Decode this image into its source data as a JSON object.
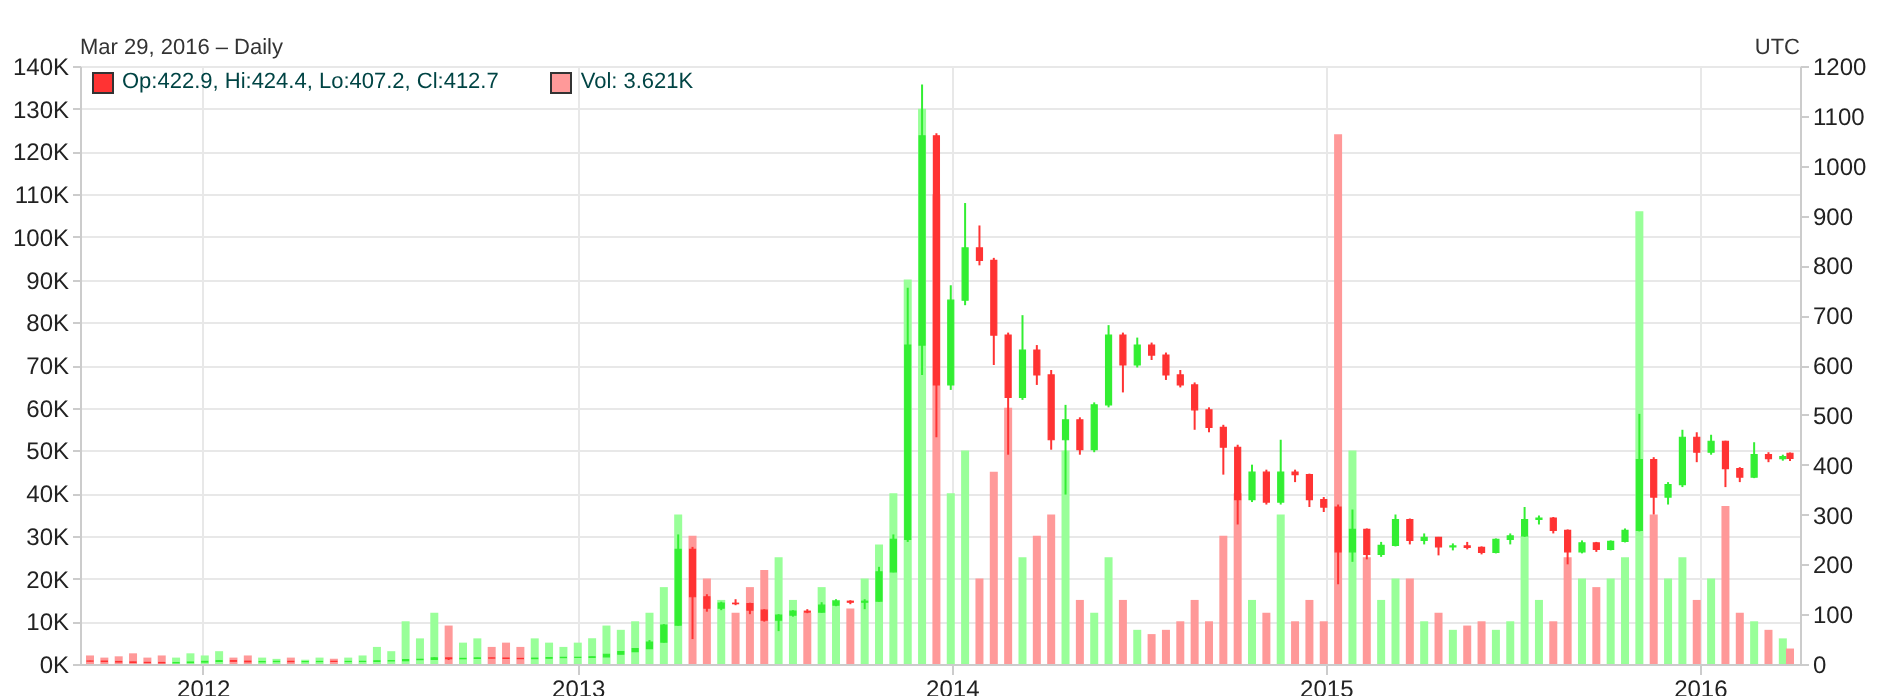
{
  "chart_data": {
    "type": "candlestick",
    "subtitle": "Mar 29, 2016 – Daily",
    "annotations": [
      "Op:422.9, Hi:424.4, Lo:407.2, Cl:412.7",
      "Vol: 3.621K",
      "UTC"
    ],
    "x": [
      "2011-09-13",
      "2011-09-27",
      "2011-10-11",
      "2011-10-25",
      "2011-11-08",
      "2011-11-22",
      "2011-12-06",
      "2011-12-20",
      "2012-01-03",
      "2012-01-17",
      "2012-01-31",
      "2012-02-14",
      "2012-02-28",
      "2012-03-13",
      "2012-03-27",
      "2012-04-10",
      "2012-04-24",
      "2012-05-08",
      "2012-05-22",
      "2012-06-05",
      "2012-06-19",
      "2012-07-03",
      "2012-07-17",
      "2012-07-31",
      "2012-08-14",
      "2012-08-28",
      "2012-09-11",
      "2012-09-25",
      "2012-10-09",
      "2012-10-23",
      "2012-11-06",
      "2012-11-20",
      "2012-12-04",
      "2012-12-18",
      "2013-01-01",
      "2013-01-15",
      "2013-01-29",
      "2013-02-12",
      "2013-02-26",
      "2013-03-12",
      "2013-03-26",
      "2013-04-09",
      "2013-04-23",
      "2013-05-07",
      "2013-05-21",
      "2013-06-04",
      "2013-06-18",
      "2013-07-02",
      "2013-07-16",
      "2013-07-30",
      "2013-08-13",
      "2013-08-27",
      "2013-09-10",
      "2013-09-24",
      "2013-10-08",
      "2013-10-22",
      "2013-11-05",
      "2013-11-19",
      "2013-12-03",
      "2013-12-17",
      "2013-12-31",
      "2014-01-14",
      "2014-01-28",
      "2014-02-11",
      "2014-02-25",
      "2014-03-11",
      "2014-03-25",
      "2014-04-08",
      "2014-04-22",
      "2014-05-06",
      "2014-05-20",
      "2014-06-03",
      "2014-06-17",
      "2014-07-01",
      "2014-07-15",
      "2014-07-29",
      "2014-08-12",
      "2014-08-26",
      "2014-09-09",
      "2014-09-23",
      "2014-10-07",
      "2014-10-21",
      "2014-11-04",
      "2014-11-18",
      "2014-12-02",
      "2014-12-16",
      "2014-12-30",
      "2015-01-13",
      "2015-01-27",
      "2015-02-10",
      "2015-02-24",
      "2015-03-10",
      "2015-03-24",
      "2015-04-07",
      "2015-04-21",
      "2015-05-05",
      "2015-05-19",
      "2015-06-02",
      "2015-06-16",
      "2015-06-30",
      "2015-07-14",
      "2015-07-28",
      "2015-08-11",
      "2015-08-25",
      "2015-09-08",
      "2015-09-22",
      "2015-10-06",
      "2015-10-20",
      "2015-11-03",
      "2015-11-17",
      "2015-12-01",
      "2015-12-15",
      "2015-12-29",
      "2016-01-12",
      "2016-01-26",
      "2016-02-09",
      "2016-02-23",
      "2016-03-08",
      "2016-03-22",
      "2016-03-29"
    ],
    "xlim": [
      "2011-09-13",
      "2016-03-29"
    ],
    "xticks": [
      "2012",
      "2013",
      "2014",
      "2015",
      "2016"
    ],
    "ylim": [
      0,
      140000
    ],
    "yticks": [
      {
        "value": 0,
        "label": "0K"
      },
      {
        "value": 10000,
        "label": "10K"
      },
      {
        "value": 20000,
        "label": "20K"
      },
      {
        "value": 30000,
        "label": "30K"
      },
      {
        "value": 40000,
        "label": "40K"
      },
      {
        "value": 50000,
        "label": "50K"
      },
      {
        "value": 60000,
        "label": "60K"
      },
      {
        "value": 70000,
        "label": "70K"
      },
      {
        "value": 80000,
        "label": "80K"
      },
      {
        "value": 90000,
        "label": "90K"
      },
      {
        "value": 100000,
        "label": "100K"
      },
      {
        "value": 110000,
        "label": "110K"
      },
      {
        "value": 120000,
        "label": "120K"
      },
      {
        "value": 130000,
        "label": "130K"
      },
      {
        "value": 140000,
        "label": "140K"
      }
    ],
    "y2lim": [
      0,
      1200
    ],
    "y2ticks": [
      0,
      100,
      200,
      300,
      400,
      500,
      600,
      700,
      800,
      900,
      1000,
      1100,
      1200
    ],
    "grid": true,
    "series": [
      {
        "type": "bar",
        "axis": "y",
        "values": [
          2000,
          1500,
          1800,
          2500,
          1500,
          2000,
          1500,
          2500,
          2000,
          3000,
          1500,
          2000,
          1500,
          1200,
          1500,
          1000,
          1500,
          1200,
          1500,
          2000,
          4000,
          3000,
          10000,
          6000,
          12000,
          9000,
          5000,
          6000,
          4000,
          5000,
          4000,
          6000,
          5000,
          4000,
          5000,
          6000,
          9000,
          8000,
          10000,
          12000,
          18000,
          35000,
          30000,
          20000,
          15000,
          12000,
          18000,
          22000,
          25000,
          15000,
          12000,
          18000,
          15000,
          13000,
          20000,
          28000,
          40000,
          90000,
          130000,
          110000,
          40000,
          50000,
          20000,
          45000,
          60000,
          25000,
          30000,
          35000,
          50000,
          15000,
          12000,
          25000,
          15000,
          8000,
          7000,
          8000,
          10000,
          15000,
          10000,
          30000,
          40000,
          15000,
          12000,
          35000,
          10000,
          15000,
          10000,
          124000,
          50000,
          25000,
          15000,
          20000,
          20000,
          10000,
          12000,
          8000,
          9000,
          10000,
          8000,
          10000,
          30000,
          15000,
          10000,
          25000,
          20000,
          18000,
          20000,
          25000,
          106000,
          35000,
          20000,
          25000,
          15000,
          20000,
          37000,
          12000,
          10000,
          8000,
          6000,
          3621
        ],
        "colors": [
          "#ff9999",
          "#ff9999",
          "#ff9999",
          "#ff9999",
          "#ff9999",
          "#ff9999",
          "#99ff99",
          "#99ff99",
          "#99ff99",
          "#99ff99",
          "#ff9999",
          "#ff9999",
          "#99ff99",
          "#99ff99",
          "#ff9999",
          "#99ff99",
          "#99ff99",
          "#ff9999",
          "#99ff99",
          "#99ff99",
          "#99ff99",
          "#99ff99",
          "#99ff99",
          "#99ff99",
          "#99ff99",
          "#ff9999",
          "#99ff99",
          "#99ff99",
          "#ff9999",
          "#ff9999",
          "#ff9999",
          "#99ff99",
          "#99ff99",
          "#99ff99",
          "#99ff99",
          "#99ff99",
          "#99ff99",
          "#99ff99",
          "#99ff99",
          "#99ff99",
          "#99ff99",
          "#99ff99",
          "#ff9999",
          "#ff9999",
          "#99ff99",
          "#ff9999",
          "#ff9999",
          "#ff9999",
          "#99ff99",
          "#99ff99",
          "#ff9999",
          "#99ff99",
          "#99ff99",
          "#ff9999",
          "#99ff99",
          "#99ff99",
          "#99ff99",
          "#99ff99",
          "#99ff99",
          "#ff9999",
          "#99ff99",
          "#99ff99",
          "#ff9999",
          "#ff9999",
          "#ff9999",
          "#99ff99",
          "#ff9999",
          "#ff9999",
          "#99ff99",
          "#ff9999",
          "#99ff99",
          "#99ff99",
          "#ff9999",
          "#99ff99",
          "#ff9999",
          "#ff9999",
          "#ff9999",
          "#ff9999",
          "#ff9999",
          "#ff9999",
          "#ff9999",
          "#99ff99",
          "#ff9999",
          "#99ff99",
          "#ff9999",
          "#ff9999",
          "#ff9999",
          "#ff9999",
          "#99ff99",
          "#ff9999",
          "#99ff99",
          "#99ff99",
          "#ff9999",
          "#99ff99",
          "#ff9999",
          "#99ff99",
          "#ff9999",
          "#ff9999",
          "#99ff99",
          "#99ff99",
          "#99ff99",
          "#99ff99",
          "#ff9999",
          "#ff9999",
          "#99ff99",
          "#ff9999",
          "#99ff99",
          "#99ff99",
          "#99ff99",
          "#ff9999",
          "#99ff99",
          "#99ff99",
          "#ff9999",
          "#99ff99",
          "#ff9999",
          "#ff9999",
          "#99ff99",
          "#ff9999",
          "#99ff99",
          "#ff9999"
        ]
      },
      {
        "axis": "y2",
        "ohlc": [
          [
            6.0,
            6.5,
            5.3,
            5.8
          ],
          [
            5.8,
            6.0,
            4.8,
            5.0
          ],
          [
            5.0,
            5.2,
            3.9,
            4.1
          ],
          [
            4.1,
            4.3,
            2.9,
            3.2
          ],
          [
            3.2,
            3.4,
            2.8,
            3.0
          ],
          [
            3.0,
            3.1,
            2.2,
            2.4
          ],
          [
            2.4,
            3.1,
            2.3,
            2.9
          ],
          [
            2.9,
            4.1,
            2.8,
            3.9
          ],
          [
            3.9,
            5.5,
            3.8,
            5.2
          ],
          [
            5.2,
            7.0,
            5.1,
            6.6
          ],
          [
            6.6,
            6.8,
            5.4,
            5.6
          ],
          [
            5.6,
            5.8,
            4.3,
            4.5
          ],
          [
            4.5,
            5.1,
            4.3,
            4.9
          ],
          [
            4.9,
            5.5,
            4.8,
            5.3
          ],
          [
            5.3,
            5.4,
            4.7,
            4.8
          ],
          [
            4.8,
            5.0,
            4.7,
            4.9
          ],
          [
            4.9,
            5.2,
            4.8,
            5.1
          ],
          [
            5.1,
            5.2,
            4.9,
            5.0
          ],
          [
            5.0,
            5.2,
            4.9,
            5.1
          ],
          [
            5.1,
            5.5,
            5.0,
            5.3
          ],
          [
            5.3,
            6.5,
            5.2,
            6.3
          ],
          [
            6.3,
            6.8,
            6.2,
            6.6
          ],
          [
            6.6,
            9.2,
            6.5,
            8.8
          ],
          [
            8.8,
            9.6,
            8.4,
            9.4
          ],
          [
            9.4,
            13.5,
            9.3,
            12.2
          ],
          [
            12.2,
            12.5,
            8.0,
            10.6
          ],
          [
            10.6,
            11.4,
            10.4,
            11.2
          ],
          [
            11.2,
            12.5,
            11.0,
            12.2
          ],
          [
            12.2,
            12.4,
            11.7,
            11.9
          ],
          [
            11.9,
            12.0,
            11.0,
            11.2
          ],
          [
            11.2,
            11.3,
            10.5,
            10.8
          ],
          [
            10.8,
            12.0,
            10.7,
            11.7
          ],
          [
            11.7,
            13.2,
            11.6,
            12.9
          ],
          [
            12.9,
            13.6,
            12.7,
            13.3
          ],
          [
            13.3,
            13.6,
            13.0,
            13.4
          ],
          [
            13.3,
            14.6,
            13.2,
            14.3
          ],
          [
            14.3,
            20.0,
            14.2,
            19.6
          ],
          [
            19.6,
            25.5,
            19.5,
            25
          ],
          [
            25,
            32,
            24,
            31
          ],
          [
            31,
            48,
            30,
            44
          ],
          [
            44,
            80,
            43,
            78
          ],
          [
            78,
            260,
            77,
            230
          ],
          [
            230,
            235,
            50,
            135
          ],
          [
            135,
            140,
            105,
            112
          ],
          [
            112,
            125,
            108,
            122
          ],
          [
            122,
            130,
            118,
            121
          ],
          [
            121,
            123,
            100,
            108
          ],
          [
            108,
            110,
            85,
            88
          ],
          [
            88,
            100,
            66,
            98
          ],
          [
            98,
            108,
            95,
            106
          ],
          [
            106,
            110,
            102,
            104
          ],
          [
            104,
            124,
            103,
            118
          ],
          [
            118,
            130,
            116,
            126
          ],
          [
            126,
            128,
            120,
            124
          ],
          [
            124,
            130,
            110,
            126
          ],
          [
            126,
            195,
            125,
            185
          ],
          [
            185,
            260,
            184,
            250
          ],
          [
            250,
            755,
            245,
            640
          ],
          [
            640,
            1163,
            580,
            1060
          ],
          [
            1060,
            1065,
            455,
            560
          ],
          [
            560,
            760,
            550,
            730
          ],
          [
            730,
            925,
            720,
            835
          ],
          [
            835,
            880,
            800,
            810
          ],
          [
            810,
            815,
            600,
            660
          ],
          [
            660,
            665,
            420,
            535
          ],
          [
            535,
            700,
            530,
            630
          ],
          [
            630,
            640,
            560,
            580
          ],
          [
            580,
            590,
            430,
            450
          ],
          [
            450,
            520,
            340,
            490
          ],
          [
            490,
            495,
            420,
            430
          ],
          [
            430,
            525,
            425,
            520
          ],
          [
            520,
            680,
            515,
            660
          ],
          [
            660,
            665,
            545,
            600
          ],
          [
            600,
            655,
            595,
            640
          ],
          [
            640,
            645,
            610,
            620
          ],
          [
            620,
            625,
            570,
            580
          ],
          [
            580,
            590,
            555,
            560
          ],
          [
            560,
            565,
            470,
            510
          ],
          [
            510,
            515,
            465,
            475
          ],
          [
            475,
            480,
            380,
            435
          ],
          [
            435,
            440,
            280,
            330
          ],
          [
            330,
            400,
            325,
            385
          ],
          [
            385,
            390,
            320,
            325
          ],
          [
            325,
            450,
            320,
            385
          ],
          [
            385,
            390,
            365,
            380
          ],
          [
            380,
            382,
            315,
            330
          ],
          [
            330,
            335,
            305,
            315
          ],
          [
            315,
            320,
            160,
            225
          ],
          [
            225,
            310,
            205,
            270
          ],
          [
            270,
            272,
            210,
            220
          ],
          [
            220,
            245,
            215,
            238
          ],
          [
            238,
            300,
            236,
            290
          ],
          [
            290,
            292,
            240,
            248
          ],
          [
            248,
            262,
            240,
            254
          ],
          [
            254,
            255,
            218,
            235
          ],
          [
            235,
            242,
            228,
            237
          ],
          [
            237,
            245,
            230,
            234
          ],
          [
            234,
            236,
            220,
            224
          ],
          [
            224,
            252,
            222,
            250
          ],
          [
            250,
            262,
            240,
            257
          ],
          [
            257,
            315,
            255,
            290
          ],
          [
            290,
            298,
            280,
            293
          ],
          [
            293,
            295,
            262,
            268
          ],
          [
            268,
            270,
            200,
            225
          ],
          [
            225,
            248,
            222,
            243
          ],
          [
            243,
            245,
            225,
            230
          ],
          [
            230,
            248,
            228,
            246
          ],
          [
            246,
            272,
            244,
            268
          ],
          [
            268,
            502,
            266,
            410
          ],
          [
            410,
            415,
            300,
            335
          ],
          [
            335,
            365,
            320,
            360
          ],
          [
            360,
            470,
            355,
            455
          ],
          [
            455,
            465,
            405,
            425
          ],
          [
            425,
            460,
            420,
            447
          ],
          [
            447,
            448,
            355,
            392
          ],
          [
            392,
            395,
            365,
            375
          ],
          [
            375,
            445,
            373,
            420
          ],
          [
            420,
            425,
            405,
            412
          ],
          [
            412,
            420,
            408,
            416
          ],
          [
            422.9,
            424.4,
            407.2,
            412.7
          ]
        ],
        "colors": [
          "#ff3333",
          "#ff3333",
          "#ff3333",
          "#ff3333",
          "#ff3333",
          "#ff3333",
          "#33ee33",
          "#33ee33",
          "#33ee33",
          "#33ee33",
          "#ff3333",
          "#ff3333",
          "#33ee33",
          "#33ee33",
          "#ff3333",
          "#33ee33",
          "#33ee33",
          "#ff3333",
          "#33ee33",
          "#33ee33",
          "#33ee33",
          "#33ee33",
          "#33ee33",
          "#33ee33",
          "#33ee33",
          "#ff3333",
          "#33ee33",
          "#33ee33",
          "#ff3333",
          "#ff3333",
          "#ff3333",
          "#33ee33",
          "#33ee33",
          "#33ee33",
          "#33ee33",
          "#33ee33",
          "#33ee33",
          "#33ee33",
          "#33ee33",
          "#33ee33",
          "#33ee33",
          "#33ee33",
          "#ff3333",
          "#ff3333",
          "#33ee33",
          "#ff3333",
          "#ff3333",
          "#ff3333",
          "#33ee33",
          "#33ee33",
          "#ff3333",
          "#33ee33",
          "#33ee33",
          "#ff3333",
          "#33ee33",
          "#33ee33",
          "#33ee33",
          "#33ee33",
          "#33ee33",
          "#ff3333",
          "#33ee33",
          "#33ee33",
          "#ff3333",
          "#ff3333",
          "#ff3333",
          "#33ee33",
          "#ff3333",
          "#ff3333",
          "#33ee33",
          "#ff3333",
          "#33ee33",
          "#33ee33",
          "#ff3333",
          "#33ee33",
          "#ff3333",
          "#ff3333",
          "#ff3333",
          "#ff3333",
          "#ff3333",
          "#ff3333",
          "#ff3333",
          "#33ee33",
          "#ff3333",
          "#33ee33",
          "#ff3333",
          "#ff3333",
          "#ff3333",
          "#ff3333",
          "#33ee33",
          "#ff3333",
          "#33ee33",
          "#33ee33",
          "#ff3333",
          "#33ee33",
          "#ff3333",
          "#33ee33",
          "#ff3333",
          "#ff3333",
          "#33ee33",
          "#33ee33",
          "#33ee33",
          "#33ee33",
          "#ff3333",
          "#ff3333",
          "#33ee33",
          "#ff3333",
          "#33ee33",
          "#33ee33",
          "#33ee33",
          "#ff3333",
          "#33ee33",
          "#33ee33",
          "#ff3333",
          "#33ee33",
          "#ff3333",
          "#ff3333",
          "#33ee33",
          "#ff3333",
          "#33ee33",
          "#ff3333"
        ]
      }
    ]
  }
}
